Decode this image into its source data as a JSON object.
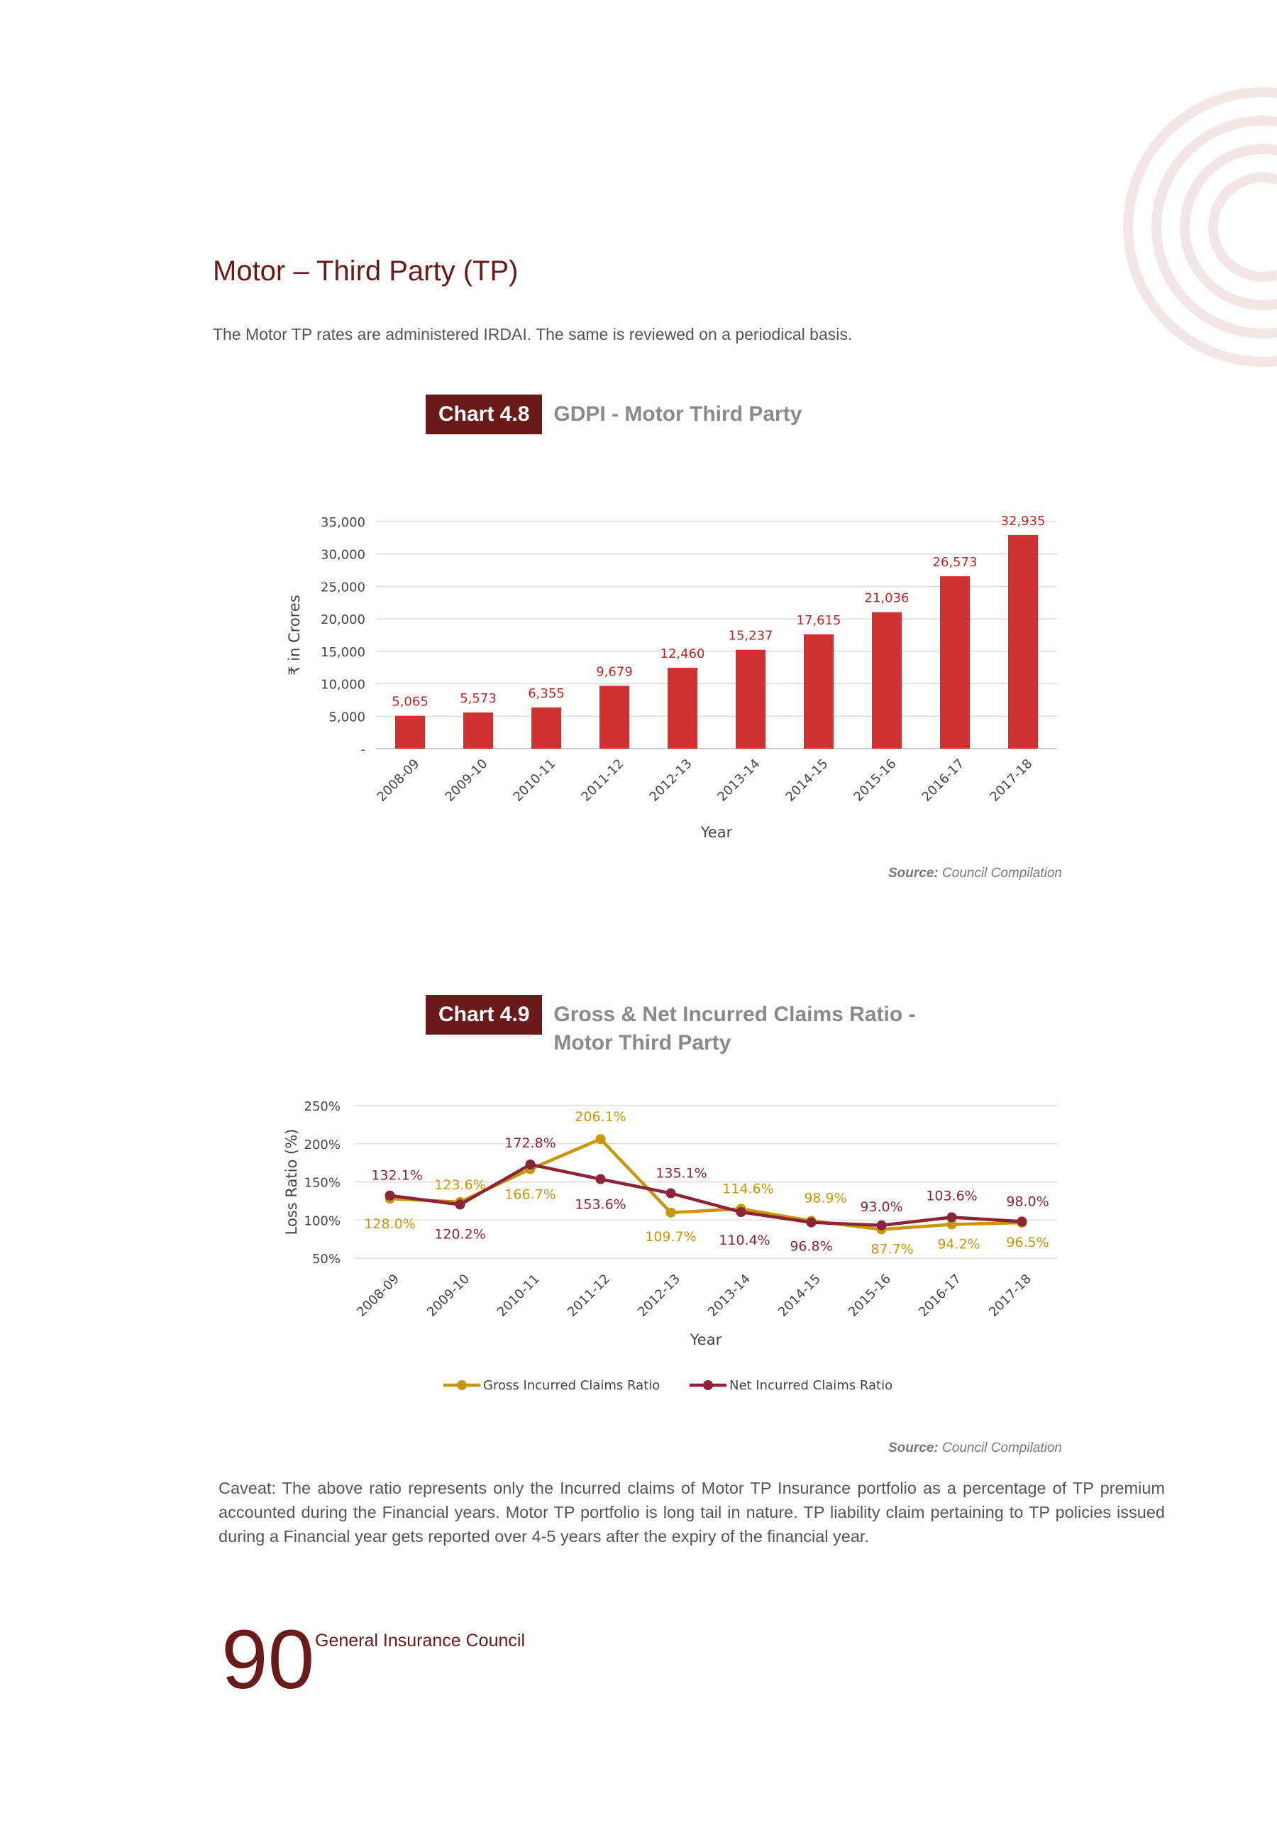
{
  "section_title": "Motor – Third Party (TP)",
  "intro_text": "The Motor TP rates are administered IRDAI. The same is reviewed on a periodical basis.",
  "chart1": {
    "badge": "Chart 4.8",
    "title": "GDPI - Motor Third Party",
    "source_label": "Source:",
    "source_text": " Council Compilation"
  },
  "chart2": {
    "badge": "Chart 4.9",
    "title_line1": "Gross & Net Incurred Claims Ratio -",
    "title_line2": "Motor Third Party",
    "source_label": "Source:",
    "source_text": " Council Compilation"
  },
  "caveat": "Caveat: The above ratio represents only the Incurred claims of Motor TP Insurance portfolio as a percentage of TP premium accounted during the Financial years. Motor TP portfolio is long tail in nature. TP liability claim pertaining to TP policies issued during a Financial year gets reported over 4-5 years after the expiry of the financial year.",
  "footer": {
    "page_number": "90",
    "org_name": "General Insurance Council"
  },
  "colors": {
    "brand": "#6b1a1a",
    "bar": "#d03232",
    "gross": "#c8960e",
    "net": "#8b2535"
  },
  "chart_data": [
    {
      "type": "bar",
      "categories": [
        "2008-09",
        "2009-10",
        "2010-11",
        "2011-12",
        "2012-13",
        "2013-14",
        "2014-15",
        "2015-16",
        "2016-17",
        "2017-18"
      ],
      "values": [
        5065,
        5573,
        6355,
        9679,
        12460,
        15237,
        17615,
        21036,
        26573,
        32935
      ],
      "value_labels": [
        "5,065",
        "5,573",
        "6,355",
        "9,679",
        "12,460",
        "15,237",
        "17,615",
        "21,036",
        "26,573",
        "32,935"
      ],
      "yticks": [
        "-",
        "5,000",
        "10,000",
        "15,000",
        "20,000",
        "25,000",
        "30,000",
        "35,000"
      ],
      "ylim": [
        0,
        35000
      ],
      "title": "GDPI - Motor Third Party",
      "xlabel": "Year",
      "ylabel": "₹ in Crores",
      "grid": true
    },
    {
      "type": "line",
      "categories": [
        "2008-09",
        "2009-10",
        "2010-11",
        "2011-12",
        "2012-13",
        "2013-14",
        "2014-15",
        "2015-16",
        "2016-17",
        "2017-18"
      ],
      "series": [
        {
          "name": "Gross Incurred Claims Ratio",
          "values": [
            128.0,
            123.6,
            166.7,
            206.1,
            109.7,
            114.6,
            98.9,
            87.7,
            94.2,
            96.5
          ],
          "labels": [
            "128.0%",
            "123.6%",
            "166.7%",
            "206.1%",
            "109.7%",
            "114.6%",
            "98.9%",
            "87.7%",
            "94.2%",
            "96.5%"
          ]
        },
        {
          "name": "Net Incurred Claims Ratio",
          "values": [
            132.1,
            120.2,
            172.8,
            153.6,
            135.1,
            110.4,
            96.8,
            93.0,
            103.6,
            98.0
          ],
          "labels": [
            "132.1%",
            "120.2%",
            "172.8%",
            "153.6%",
            "135.1%",
            "110.4%",
            "96.8%",
            "93.0%",
            "103.6%",
            "98.0%"
          ]
        }
      ],
      "yticks": [
        "50%",
        "100%",
        "150%",
        "200%",
        "250%"
      ],
      "ylim": [
        50,
        250
      ],
      "title": "Gross & Net Incurred Claims Ratio - Motor Third Party",
      "xlabel": "Year",
      "ylabel": "Loss Ratio (%)",
      "legend": "bottom",
      "grid": true
    }
  ]
}
